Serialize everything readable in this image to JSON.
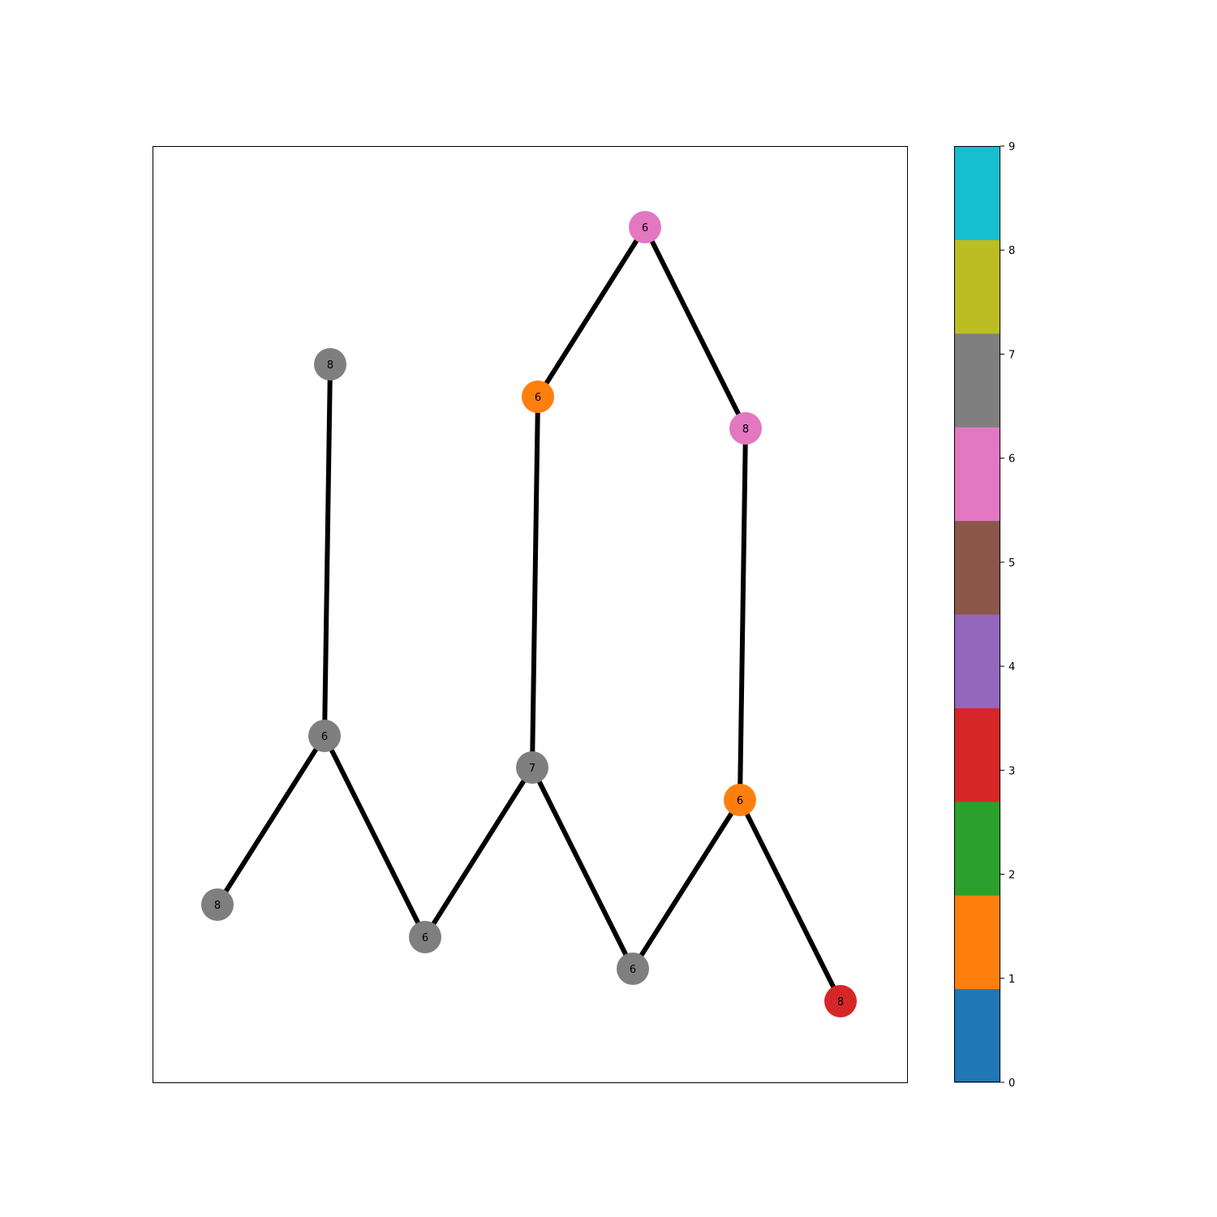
{
  "graph": {
    "nodes": [
      {
        "id": "n0",
        "label": "8",
        "color_index": 7
      },
      {
        "id": "n1",
        "label": "6",
        "color_index": 7
      },
      {
        "id": "n2",
        "label": "8",
        "color_index": 7
      },
      {
        "id": "n3",
        "label": "6",
        "color_index": 7
      },
      {
        "id": "n4",
        "label": "7",
        "color_index": 7
      },
      {
        "id": "n5",
        "label": "6",
        "color_index": 1
      },
      {
        "id": "n6",
        "label": "6",
        "color_index": 6
      },
      {
        "id": "n7",
        "label": "8",
        "color_index": 6
      },
      {
        "id": "n8",
        "label": "6",
        "color_index": 1
      },
      {
        "id": "n9",
        "label": "6",
        "color_index": 7
      },
      {
        "id": "n10",
        "label": "8",
        "color_index": 3
      }
    ],
    "edges": [
      [
        "n0",
        "n1"
      ],
      [
        "n1",
        "n2"
      ],
      [
        "n1",
        "n3"
      ],
      [
        "n3",
        "n4"
      ],
      [
        "n4",
        "n5"
      ],
      [
        "n5",
        "n6"
      ],
      [
        "n6",
        "n7"
      ],
      [
        "n7",
        "n8"
      ],
      [
        "n4",
        "n9"
      ],
      [
        "n9",
        "n8"
      ],
      [
        "n8",
        "n10"
      ]
    ]
  },
  "colorbar": {
    "colors": [
      "#1f77b4",
      "#ff7f0e",
      "#2ca02c",
      "#d62728",
      "#9467bd",
      "#8c564b",
      "#e377c2",
      "#7f7f7f",
      "#bcbd22",
      "#17becf"
    ],
    "ticks": [
      "0",
      "1",
      "2",
      "3",
      "4",
      "5",
      "6",
      "7",
      "8",
      "9"
    ]
  }
}
